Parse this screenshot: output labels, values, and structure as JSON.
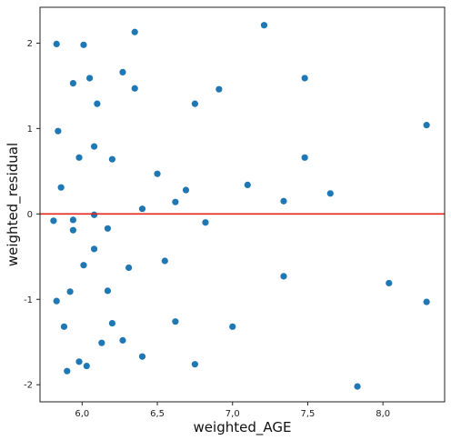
{
  "chart_data": {
    "type": "scatter",
    "title": "",
    "xlabel": "weighted_AGE",
    "ylabel": "weighted_residual",
    "xlim": [
      5.72,
      8.41
    ],
    "ylim": [
      -2.2,
      2.42
    ],
    "xticks": [
      6.0,
      6.5,
      7.0,
      7.5,
      8.0
    ],
    "xtick_labels": [
      "6,0",
      "6,5",
      "7,0",
      "7,5",
      "8,0"
    ],
    "yticks": [
      -2,
      -1,
      0,
      1,
      2
    ],
    "ytick_labels": [
      "-2",
      "-1",
      "0",
      "1",
      "2"
    ],
    "grid": false,
    "legend": "none",
    "point_color": "#1f77b4",
    "reference_line": {
      "y": 0,
      "color": "#e8231a"
    },
    "points": [
      {
        "x": 5.83,
        "y": 1.99
      },
      {
        "x": 6.01,
        "y": 1.98
      },
      {
        "x": 6.35,
        "y": 2.13
      },
      {
        "x": 7.21,
        "y": 2.21
      },
      {
        "x": 5.94,
        "y": 1.53
      },
      {
        "x": 6.05,
        "y": 1.59
      },
      {
        "x": 6.27,
        "y": 1.66
      },
      {
        "x": 6.35,
        "y": 1.47
      },
      {
        "x": 7.48,
        "y": 1.59
      },
      {
        "x": 6.1,
        "y": 1.29
      },
      {
        "x": 6.75,
        "y": 1.29
      },
      {
        "x": 6.91,
        "y": 1.46
      },
      {
        "x": 5.84,
        "y": 0.97
      },
      {
        "x": 8.29,
        "y": 1.04
      },
      {
        "x": 5.98,
        "y": 0.66
      },
      {
        "x": 6.08,
        "y": 0.79
      },
      {
        "x": 6.2,
        "y": 0.64
      },
      {
        "x": 7.48,
        "y": 0.66
      },
      {
        "x": 5.86,
        "y": 0.31
      },
      {
        "x": 6.5,
        "y": 0.47
      },
      {
        "x": 6.62,
        "y": 0.14
      },
      {
        "x": 6.69,
        "y": 0.28
      },
      {
        "x": 7.1,
        "y": 0.34
      },
      {
        "x": 7.34,
        "y": 0.15
      },
      {
        "x": 7.65,
        "y": 0.24
      },
      {
        "x": 5.81,
        "y": -0.08
      },
      {
        "x": 5.94,
        "y": -0.07
      },
      {
        "x": 6.08,
        "y": -0.01
      },
      {
        "x": 6.4,
        "y": 0.06
      },
      {
        "x": 6.82,
        "y": -0.1
      },
      {
        "x": 5.94,
        "y": -0.19
      },
      {
        "x": 6.17,
        "y": -0.17
      },
      {
        "x": 6.08,
        "y": -0.41
      },
      {
        "x": 6.01,
        "y": -0.6
      },
      {
        "x": 6.31,
        "y": -0.63
      },
      {
        "x": 6.55,
        "y": -0.55
      },
      {
        "x": 7.34,
        "y": -0.73
      },
      {
        "x": 8.04,
        "y": -0.81
      },
      {
        "x": 5.83,
        "y": -1.02
      },
      {
        "x": 5.92,
        "y": -0.91
      },
      {
        "x": 6.17,
        "y": -0.9
      },
      {
        "x": 8.29,
        "y": -1.03
      },
      {
        "x": 5.88,
        "y": -1.32
      },
      {
        "x": 6.2,
        "y": -1.28
      },
      {
        "x": 6.62,
        "y": -1.26
      },
      {
        "x": 7.0,
        "y": -1.32
      },
      {
        "x": 6.13,
        "y": -1.51
      },
      {
        "x": 6.27,
        "y": -1.48
      },
      {
        "x": 5.98,
        "y": -1.73
      },
      {
        "x": 6.4,
        "y": -1.67
      },
      {
        "x": 5.9,
        "y": -1.84
      },
      {
        "x": 6.03,
        "y": -1.78
      },
      {
        "x": 6.75,
        "y": -1.76
      },
      {
        "x": 7.83,
        "y": -2.02
      }
    ]
  }
}
